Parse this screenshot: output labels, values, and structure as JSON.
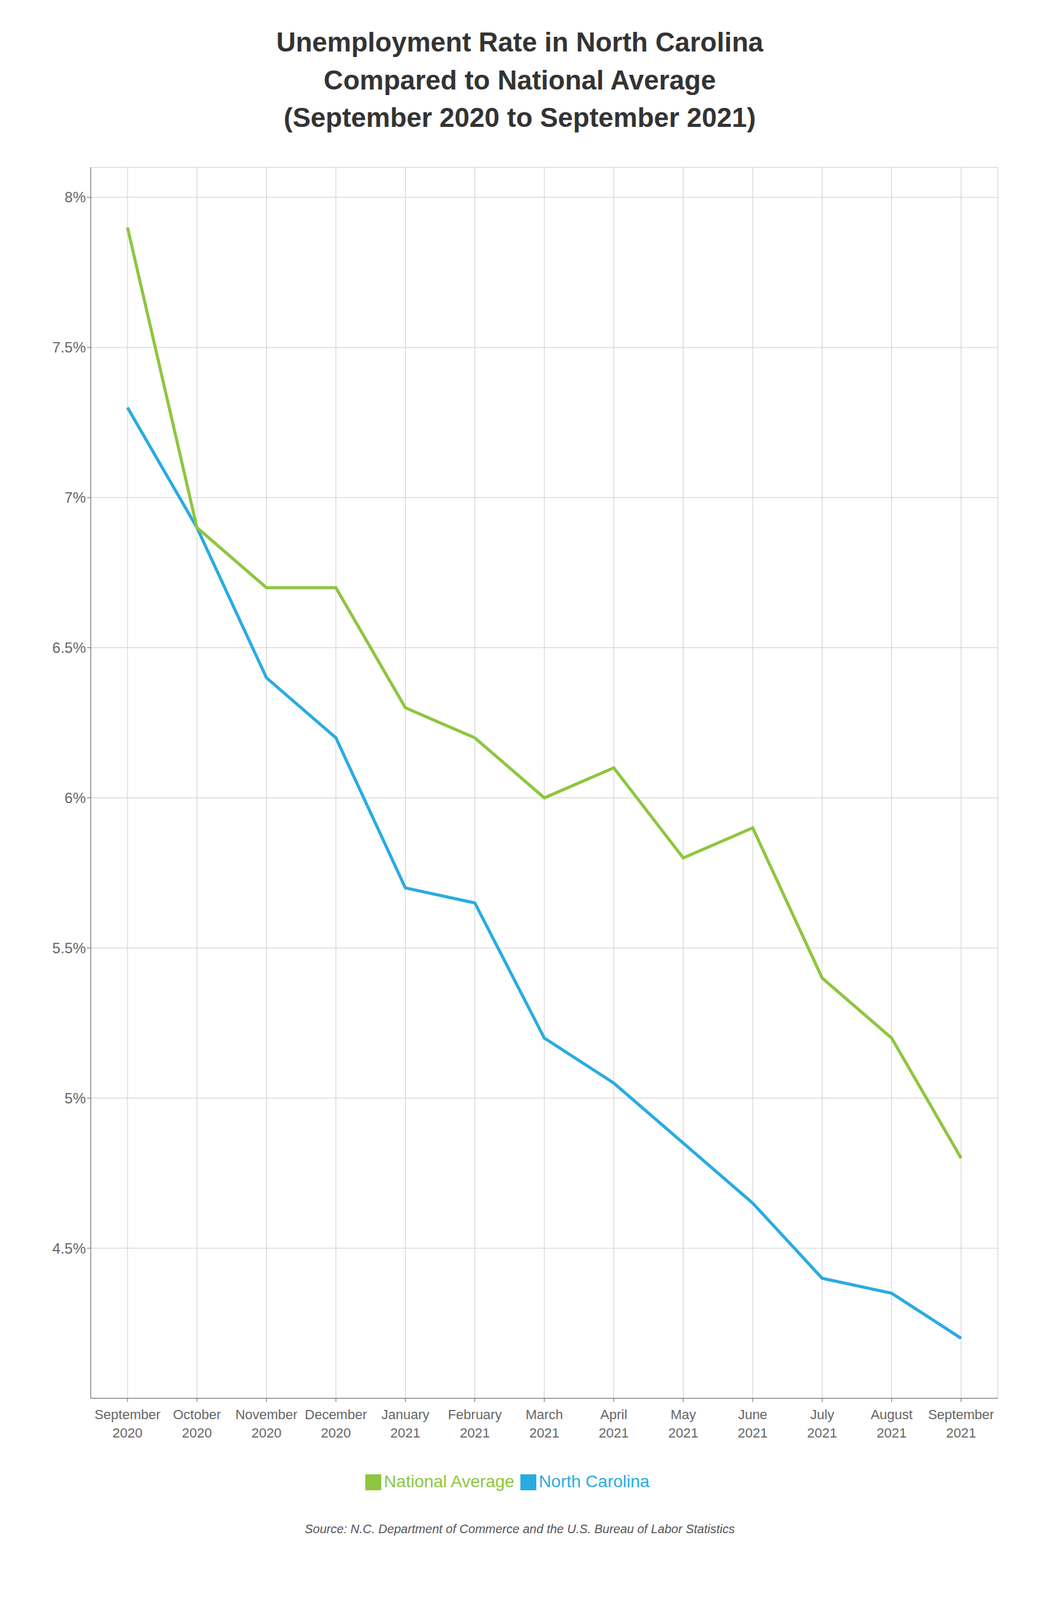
{
  "chart_data": {
    "type": "line",
    "title": "Unemployment Rate in North Carolina\nCompared to National Average\n(September 2020 to September 2021)",
    "categories": [
      "September\n2020",
      "October\n2020",
      "November\n2020",
      "December\n2020",
      "January\n2021",
      "February\n2021",
      "March\n2021",
      "April\n2021",
      "May\n2021",
      "June\n2021",
      "July\n2021",
      "August\n2021",
      "September\n2021"
    ],
    "series": [
      {
        "name": "North Carolina",
        "color": "#29ABE2",
        "values": [
          7.3,
          6.9,
          6.4,
          6.2,
          5.7,
          5.65,
          5.2,
          5.05,
          4.85,
          4.65,
          4.4,
          4.35,
          4.2
        ]
      },
      {
        "name": "National Average",
        "color": "#8DC63F",
        "values": [
          7.9,
          6.9,
          6.7,
          6.7,
          6.3,
          6.2,
          6.0,
          6.1,
          5.8,
          5.9,
          5.4,
          5.2,
          4.8
        ]
      }
    ],
    "ylim": [
      4.0,
      8.1
    ],
    "yticks": [
      {
        "value": 4.5,
        "label": "4.5%"
      },
      {
        "value": 5.0,
        "label": "5%"
      },
      {
        "value": 5.5,
        "label": "5.5%"
      },
      {
        "value": 6.0,
        "label": "6%"
      },
      {
        "value": 6.5,
        "label": "6.5%"
      },
      {
        "value": 7.0,
        "label": "7%"
      },
      {
        "value": 7.5,
        "label": "7.5%"
      },
      {
        "value": 8.0,
        "label": "8%"
      }
    ],
    "grid": true,
    "legend": "bottom",
    "annotations": [
      "Source: N.C. Department of Commerce and the U.S. Bureau of Labor Statistics"
    ]
  }
}
